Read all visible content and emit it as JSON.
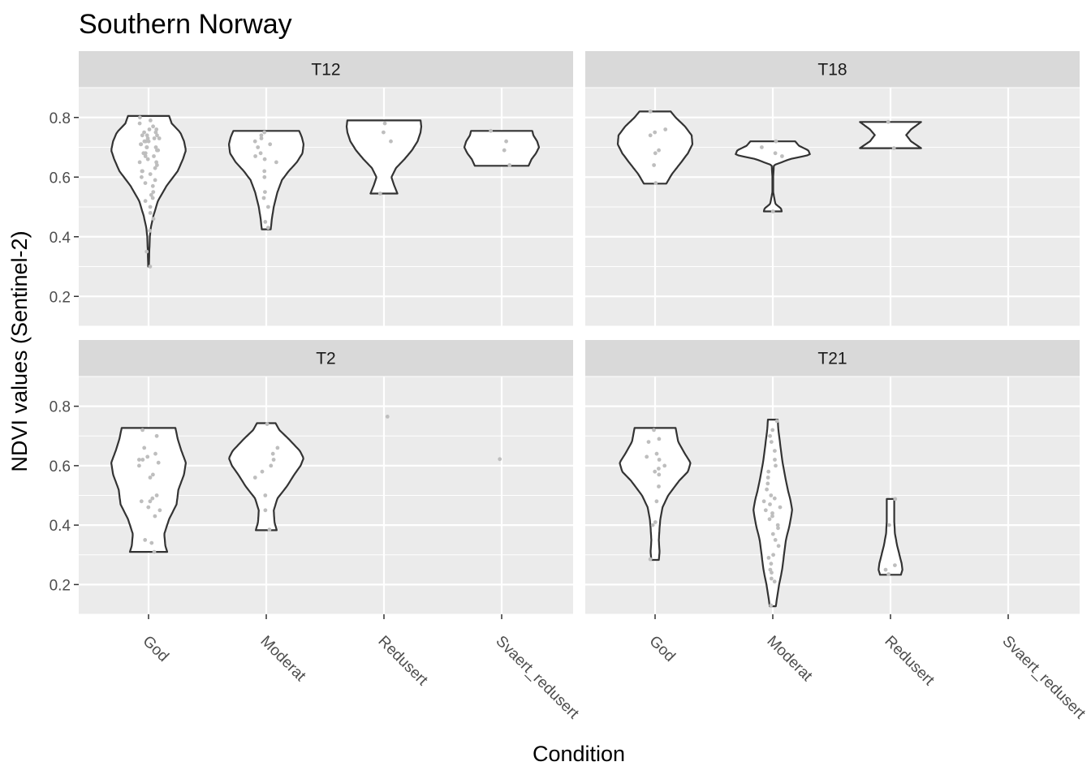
{
  "chart_data": {
    "type": "violin",
    "title": "Southern Norway",
    "xlabel": "Condition",
    "ylabel": "NDVI values (Sentinel-2)",
    "categories": [
      "God",
      "Moderat",
      "Redusert",
      "Svaert_redusert"
    ],
    "ylim": [
      0.1,
      0.9
    ],
    "yticks": [
      0.2,
      0.4,
      0.6,
      0.8
    ],
    "grid": true,
    "layout": "2x2 facets",
    "colors": {
      "panel_bg": "#ebebeb",
      "strip_bg": "#d9d9d9",
      "grid": "#ffffff",
      "violin_stroke": "#333333",
      "violin_fill": "#ffffff",
      "points": "#bebebe"
    },
    "facets": [
      {
        "label": "T12",
        "groups": [
          {
            "category": "God",
            "min": 0.3,
            "max": 0.805,
            "density": [
              [
                0.3,
                0.01
              ],
              [
                0.35,
                0.02
              ],
              [
                0.4,
                0.035
              ],
              [
                0.43,
                0.06
              ],
              [
                0.47,
                0.13
              ],
              [
                0.52,
                0.25
              ],
              [
                0.57,
                0.48
              ],
              [
                0.62,
                0.78
              ],
              [
                0.66,
                0.92
              ],
              [
                0.69,
                1.0
              ],
              [
                0.72,
                0.95
              ],
              [
                0.75,
                0.85
              ],
              [
                0.78,
                0.62
              ],
              [
                0.805,
                0.55
              ]
            ],
            "points": [
              0.3,
              0.35,
              0.42,
              0.46,
              0.48,
              0.5,
              0.52,
              0.53,
              0.54,
              0.55,
              0.57,
              0.58,
              0.59,
              0.6,
              0.61,
              0.62,
              0.62,
              0.63,
              0.64,
              0.65,
              0.65,
              0.66,
              0.67,
              0.67,
              0.68,
              0.68,
              0.69,
              0.69,
              0.7,
              0.7,
              0.7,
              0.71,
              0.71,
              0.72,
              0.72,
              0.72,
              0.73,
              0.73,
              0.73,
              0.74,
              0.74,
              0.74,
              0.75,
              0.75,
              0.76,
              0.76,
              0.77,
              0.78,
              0.79,
              0.8
            ]
          },
          {
            "category": "Moderat",
            "min": 0.425,
            "max": 0.755,
            "density": [
              [
                0.425,
                0.12
              ],
              [
                0.46,
                0.15
              ],
              [
                0.5,
                0.2
              ],
              [
                0.55,
                0.3
              ],
              [
                0.59,
                0.42
              ],
              [
                0.62,
                0.6
              ],
              [
                0.65,
                0.82
              ],
              [
                0.68,
                0.97
              ],
              [
                0.71,
                1.0
              ],
              [
                0.735,
                0.95
              ],
              [
                0.755,
                0.88
              ]
            ],
            "points": [
              0.43,
              0.45,
              0.5,
              0.53,
              0.55,
              0.6,
              0.62,
              0.65,
              0.66,
              0.67,
              0.68,
              0.7,
              0.71,
              0.72,
              0.73,
              0.74,
              0.75
            ]
          },
          {
            "category": "Redusert",
            "min": 0.545,
            "max": 0.79,
            "density": [
              [
                0.545,
                0.36
              ],
              [
                0.57,
                0.28
              ],
              [
                0.6,
                0.2
              ],
              [
                0.63,
                0.32
              ],
              [
                0.66,
                0.55
              ],
              [
                0.69,
                0.75
              ],
              [
                0.72,
                0.9
              ],
              [
                0.75,
                0.98
              ],
              [
                0.77,
                1.0
              ],
              [
                0.79,
                0.98
              ]
            ],
            "points": [
              0.545,
              0.72,
              0.75,
              0.78
            ]
          },
          {
            "category": "Svaert_redusert",
            "min": 0.638,
            "max": 0.755,
            "density": [
              [
                0.638,
                0.72
              ],
              [
                0.66,
                0.8
              ],
              [
                0.68,
                0.92
              ],
              [
                0.7,
                1.0
              ],
              [
                0.72,
                0.95
              ],
              [
                0.74,
                0.85
              ],
              [
                0.755,
                0.82
              ]
            ],
            "points": [
              0.64,
              0.69,
              0.72,
              0.755
            ]
          }
        ]
      },
      {
        "label": "T18",
        "groups": [
          {
            "category": "God",
            "min": 0.578,
            "max": 0.82,
            "density": [
              [
                0.578,
                0.3
              ],
              [
                0.61,
                0.45
              ],
              [
                0.65,
                0.7
              ],
              [
                0.68,
                0.88
              ],
              [
                0.71,
                1.0
              ],
              [
                0.74,
                0.98
              ],
              [
                0.77,
                0.8
              ],
              [
                0.8,
                0.55
              ],
              [
                0.82,
                0.42
              ]
            ],
            "points": [
              0.58,
              0.64,
              0.68,
              0.69,
              0.74,
              0.75,
              0.76,
              0.82
            ]
          },
          {
            "category": "Moderat",
            "min": 0.485,
            "max": 0.72,
            "density": [
              [
                0.485,
                0.24
              ],
              [
                0.495,
                0.22
              ],
              [
                0.51,
                0.07
              ],
              [
                0.55,
                0.01
              ],
              [
                0.6,
                0.01
              ],
              [
                0.64,
                0.03
              ],
              [
                0.66,
                0.45
              ],
              [
                0.675,
                1.0
              ],
              [
                0.69,
                0.95
              ],
              [
                0.705,
                0.7
              ],
              [
                0.72,
                0.6
              ]
            ],
            "points": [
              0.485,
              0.67,
              0.68,
              0.7,
              0.72
            ]
          },
          {
            "category": "Redusert",
            "min": 0.697,
            "max": 0.785,
            "density": [
              [
                0.697,
                0.82
              ],
              [
                0.72,
                0.55
              ],
              [
                0.741,
                0.42
              ],
              [
                0.76,
                0.55
              ],
              [
                0.785,
                0.82
              ]
            ],
            "points": [
              0.697,
              0.785
            ]
          },
          {
            "category": "Svaert_redusert",
            "points": []
          }
        ]
      },
      {
        "label": "T2",
        "groups": [
          {
            "category": "God",
            "min": 0.31,
            "max": 0.727,
            "density": [
              [
                0.31,
                0.5
              ],
              [
                0.33,
                0.45
              ],
              [
                0.37,
                0.42
              ],
              [
                0.42,
                0.55
              ],
              [
                0.47,
                0.75
              ],
              [
                0.52,
                0.8
              ],
              [
                0.57,
                0.95
              ],
              [
                0.61,
                1.0
              ],
              [
                0.65,
                0.88
              ],
              [
                0.69,
                0.78
              ],
              [
                0.727,
                0.72
              ]
            ],
            "points": [
              0.31,
              0.34,
              0.35,
              0.43,
              0.45,
              0.46,
              0.48,
              0.48,
              0.49,
              0.5,
              0.56,
              0.57,
              0.6,
              0.61,
              0.62,
              0.62,
              0.63,
              0.64,
              0.66,
              0.7,
              0.72
            ]
          },
          {
            "category": "Moderat",
            "min": 0.383,
            "max": 0.743,
            "density": [
              [
                0.383,
                0.28
              ],
              [
                0.41,
                0.22
              ],
              [
                0.45,
                0.2
              ],
              [
                0.49,
                0.3
              ],
              [
                0.53,
                0.55
              ],
              [
                0.57,
                0.75
              ],
              [
                0.6,
                0.92
              ],
              [
                0.625,
                1.0
              ],
              [
                0.65,
                0.9
              ],
              [
                0.69,
                0.6
              ],
              [
                0.72,
                0.35
              ],
              [
                0.743,
                0.25
              ]
            ],
            "points": [
              0.385,
              0.45,
              0.5,
              0.56,
              0.58,
              0.6,
              0.62,
              0.64,
              0.66,
              0.74
            ]
          },
          {
            "category": "Redusert",
            "points": [
              0.765
            ]
          },
          {
            "category": "Svaert_redusert",
            "points": [
              0.622
            ]
          }
        ]
      },
      {
        "label": "T21",
        "groups": [
          {
            "category": "God",
            "min": 0.283,
            "max": 0.727,
            "density": [
              [
                0.283,
                0.1
              ],
              [
                0.31,
                0.12
              ],
              [
                0.35,
                0.1
              ],
              [
                0.39,
                0.12
              ],
              [
                0.42,
                0.14
              ],
              [
                0.46,
                0.2
              ],
              [
                0.5,
                0.35
              ],
              [
                0.55,
                0.65
              ],
              [
                0.58,
                0.88
              ],
              [
                0.61,
                0.95
              ],
              [
                0.64,
                0.8
              ],
              [
                0.68,
                0.62
              ],
              [
                0.727,
                0.55
              ]
            ],
            "points": [
              0.285,
              0.4,
              0.41,
              0.48,
              0.53,
              0.57,
              0.58,
              0.59,
              0.6,
              0.62,
              0.63,
              0.64,
              0.68,
              0.69,
              0.72
            ]
          },
          {
            "category": "Moderat",
            "min": 0.127,
            "max": 0.755,
            "density": [
              [
                0.127,
                0.08
              ],
              [
                0.16,
                0.12
              ],
              [
                0.2,
                0.17
              ],
              [
                0.25,
                0.25
              ],
              [
                0.3,
                0.3
              ],
              [
                0.35,
                0.35
              ],
              [
                0.4,
                0.45
              ],
              [
                0.45,
                0.52
              ],
              [
                0.48,
                0.48
              ],
              [
                0.52,
                0.4
              ],
              [
                0.57,
                0.32
              ],
              [
                0.62,
                0.25
              ],
              [
                0.67,
                0.2
              ],
              [
                0.72,
                0.15
              ],
              [
                0.755,
                0.13
              ]
            ],
            "points": [
              0.13,
              0.21,
              0.22,
              0.24,
              0.25,
              0.27,
              0.29,
              0.3,
              0.33,
              0.35,
              0.37,
              0.39,
              0.4,
              0.42,
              0.43,
              0.44,
              0.45,
              0.46,
              0.47,
              0.48,
              0.49,
              0.5,
              0.52,
              0.54,
              0.56,
              0.58,
              0.6,
              0.62,
              0.65,
              0.68,
              0.7,
              0.72,
              0.75
            ]
          },
          {
            "category": "Redusert",
            "min": 0.233,
            "max": 0.488,
            "density": [
              [
                0.233,
                0.28
              ],
              [
                0.25,
                0.32
              ],
              [
                0.27,
                0.3
              ],
              [
                0.3,
                0.24
              ],
              [
                0.33,
                0.18
              ],
              [
                0.37,
                0.12
              ],
              [
                0.41,
                0.1
              ],
              [
                0.45,
                0.1
              ],
              [
                0.488,
                0.1
              ]
            ],
            "points": [
              0.235,
              0.25,
              0.265,
              0.4,
              0.488
            ]
          },
          {
            "category": "Svaert_redusert",
            "points": []
          }
        ]
      }
    ]
  }
}
